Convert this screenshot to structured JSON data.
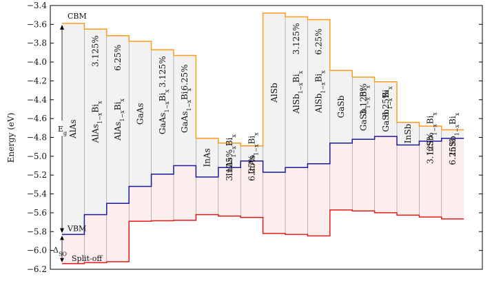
{
  "chart_data": {
    "type": "step-bands",
    "ylabel": "Energy (eV)",
    "ylim": [
      -6.2,
      -3.4
    ],
    "yticks": [
      "-3.4",
      "-3.6",
      "-3.8",
      "-4.0",
      "-4.2",
      "-4.4",
      "-4.6",
      "-4.8",
      "-5.0",
      "-5.2",
      "-5.4",
      "-5.6",
      "-5.8",
      "-6.0",
      "-6.2"
    ],
    "level_labels": {
      "cbm": "CBM",
      "vbm": "VBM",
      "eg": "Eg",
      "delta_so": "ΔSO",
      "split_off": "Split-off"
    },
    "colors": {
      "cbm": "#ff9a1a",
      "vbm": "#1a1a99",
      "split_off": "#e61919",
      "gap_fill": "#f2f2f2",
      "so_fill": "#fdeeee",
      "frame": "#000000",
      "divider": "#777777"
    },
    "materials": [
      {
        "base": "AlAs",
        "sub": "",
        "pct": "",
        "cbm": -3.59,
        "vbm": -5.83,
        "so": -6.14
      },
      {
        "base": "AlAs",
        "sub": "1−x",
        "pct": "3.125%",
        "cbm": -3.65,
        "vbm": -5.62,
        "so": -6.13
      },
      {
        "base": "AlAs",
        "sub": "1−x",
        "pct": "6.25%",
        "cbm": -3.72,
        "vbm": -5.5,
        "so": -6.12
      },
      {
        "base": "GaAs",
        "sub": "",
        "pct": "",
        "cbm": -3.78,
        "vbm": -5.32,
        "so": -5.69
      },
      {
        "base": "GaAs",
        "sub": "1−x",
        "pct": "3.125%",
        "cbm": -3.87,
        "vbm": -5.19,
        "so": -5.685
      },
      {
        "base": "GaAs",
        "sub": "1−x",
        "pct": "6.25%",
        "cbm": -3.93,
        "vbm": -5.1,
        "so": -5.68
      },
      {
        "base": "InAs",
        "sub": "",
        "pct": "",
        "cbm": -4.81,
        "vbm": -5.22,
        "so": -5.62
      },
      {
        "base": "InAs",
        "sub": "1−x",
        "pct": "3.125%",
        "cbm": -4.86,
        "vbm": -5.12,
        "so": -5.635
      },
      {
        "base": "InAs",
        "sub": "1−x",
        "pct": "6.25%",
        "cbm": -4.89,
        "vbm": -5.05,
        "so": -5.65
      },
      {
        "base": "AlSb",
        "sub": "",
        "pct": "",
        "cbm": -3.48,
        "vbm": -5.17,
        "so": -5.82
      },
      {
        "base": "AlSb",
        "sub": "1−x",
        "pct": "3.125%",
        "cbm": -3.52,
        "vbm": -5.12,
        "so": -5.83
      },
      {
        "base": "AlSb",
        "sub": "1−x",
        "pct": "6.25%",
        "cbm": -3.55,
        "vbm": -5.08,
        "so": -5.845
      },
      {
        "base": "GaSb",
        "sub": "",
        "pct": "",
        "cbm": -4.09,
        "vbm": -4.86,
        "so": -5.57
      },
      {
        "base": "GaSb",
        "sub": "1−x",
        "pct": "3.125%",
        "cbm": -4.16,
        "vbm": -4.82,
        "so": -5.58
      },
      {
        "base": "GaSb",
        "sub": "1−x",
        "pct": "6.25%",
        "cbm": -4.21,
        "vbm": -4.79,
        "so": -5.6
      },
      {
        "base": "InSb",
        "sub": "",
        "pct": "",
        "cbm": -4.64,
        "vbm": -4.88,
        "so": -5.625
      },
      {
        "base": "InSb",
        "sub": "1−x",
        "pct": "3.125%",
        "cbm": -4.68,
        "vbm": -4.84,
        "so": -5.645
      },
      {
        "base": "InSb",
        "sub": "1−x",
        "pct": "6.25%",
        "cbm": -4.72,
        "vbm": -4.81,
        "so": -5.665
      }
    ],
    "bi_label": "Bi",
    "bi_sub": "x"
  }
}
